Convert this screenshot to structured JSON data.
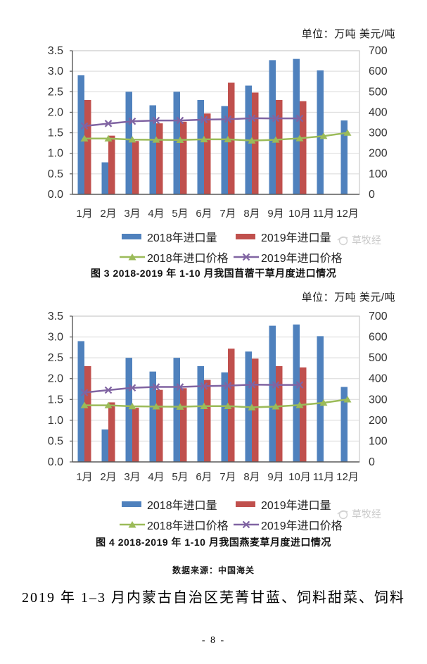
{
  "page": {
    "source_note": "数据来源：中国海关",
    "body_text": "2019 年 1–3 月内蒙古自治区芜菁甘蓝、饲料甜菜、饲料",
    "page_number": "- 8 -",
    "watermark_text": "草牧经",
    "watermark_color": "#c9c9c9"
  },
  "colors": {
    "bar_2018": "#4F81BD",
    "bar_2019": "#C0504D",
    "line_2018": "#9BBB59",
    "line_2019": "#8064A2",
    "gridline": "#d9d9d9",
    "frame": "#bfbfbf",
    "axis": "#595959",
    "tick_text": "#333333"
  },
  "chart_data": [
    {
      "type": "bar",
      "combo": "bar+line dual axis",
      "unit_label": "单位：万吨 美元/吨",
      "caption": "图 3  2018-2019 年 1-10 月我国苜蓿干草月度进口情况",
      "categories": [
        "1月",
        "2月",
        "3月",
        "4月",
        "5月",
        "6月",
        "7月",
        "8月",
        "9月",
        "10月",
        "11月",
        "12月"
      ],
      "left_axis": {
        "min": 0,
        "max": 3.5,
        "step": 0.5,
        "unit": "万吨"
      },
      "right_axis": {
        "min": 0,
        "max": 700,
        "step": 100,
        "unit": "美元/吨"
      },
      "legend_position": "bottom",
      "grid": true,
      "series": [
        {
          "name": "2018年进口量",
          "type": "bar",
          "axis": "left",
          "color": "#4F81BD",
          "values": [
            2.9,
            0.78,
            2.5,
            2.17,
            2.5,
            2.3,
            2.15,
            2.65,
            3.27,
            3.3,
            3.02,
            1.8
          ]
        },
        {
          "name": "2019年进口量",
          "type": "bar",
          "axis": "left",
          "color": "#C0504D",
          "values": [
            2.3,
            1.43,
            1.3,
            1.73,
            1.77,
            1.97,
            2.72,
            2.48,
            2.3,
            2.27,
            null,
            null
          ]
        },
        {
          "name": "2018年进口价格",
          "type": "line",
          "marker": "triangle",
          "axis": "right",
          "color": "#9BBB59",
          "values": [
            272,
            272,
            267,
            266,
            265,
            268,
            268,
            262,
            266,
            273,
            284,
            300
          ]
        },
        {
          "name": "2019年进口价格",
          "type": "line",
          "marker": "x",
          "axis": "right",
          "color": "#8064A2",
          "values": [
            333,
            345,
            356,
            360,
            360,
            364,
            366,
            371,
            370,
            370,
            null,
            null
          ]
        }
      ]
    },
    {
      "type": "bar",
      "combo": "bar+line dual axis",
      "unit_label": "单位：万吨 美元/吨",
      "caption": "图 4  2018-2019 年 1-10 月我国燕麦草月度进口情况",
      "categories": [
        "1月",
        "2月",
        "3月",
        "4月",
        "5月",
        "6月",
        "7月",
        "8月",
        "9月",
        "10月",
        "11月",
        "12月"
      ],
      "left_axis": {
        "min": 0,
        "max": 3.5,
        "step": 0.5,
        "unit": "万吨"
      },
      "right_axis": {
        "min": 0,
        "max": 700,
        "step": 100,
        "unit": "美元/吨"
      },
      "legend_position": "bottom",
      "grid": true,
      "series": [
        {
          "name": "2018年进口量",
          "type": "bar",
          "axis": "left",
          "color": "#4F81BD",
          "values": [
            2.9,
            0.78,
            2.5,
            2.17,
            2.5,
            2.3,
            2.15,
            2.65,
            3.27,
            3.3,
            3.02,
            1.8
          ]
        },
        {
          "name": "2019年进口量",
          "type": "bar",
          "axis": "left",
          "color": "#C0504D",
          "values": [
            2.3,
            1.43,
            1.3,
            1.73,
            1.77,
            1.97,
            2.72,
            2.48,
            2.3,
            2.27,
            null,
            null
          ]
        },
        {
          "name": "2018年进口价格",
          "type": "line",
          "marker": "triangle",
          "axis": "right",
          "color": "#9BBB59",
          "values": [
            272,
            272,
            267,
            266,
            265,
            268,
            268,
            262,
            266,
            273,
            284,
            300
          ]
        },
        {
          "name": "2019年进口价格",
          "type": "line",
          "marker": "x",
          "axis": "right",
          "color": "#8064A2",
          "values": [
            333,
            345,
            356,
            360,
            360,
            364,
            366,
            371,
            370,
            370,
            null,
            null
          ]
        }
      ]
    }
  ]
}
